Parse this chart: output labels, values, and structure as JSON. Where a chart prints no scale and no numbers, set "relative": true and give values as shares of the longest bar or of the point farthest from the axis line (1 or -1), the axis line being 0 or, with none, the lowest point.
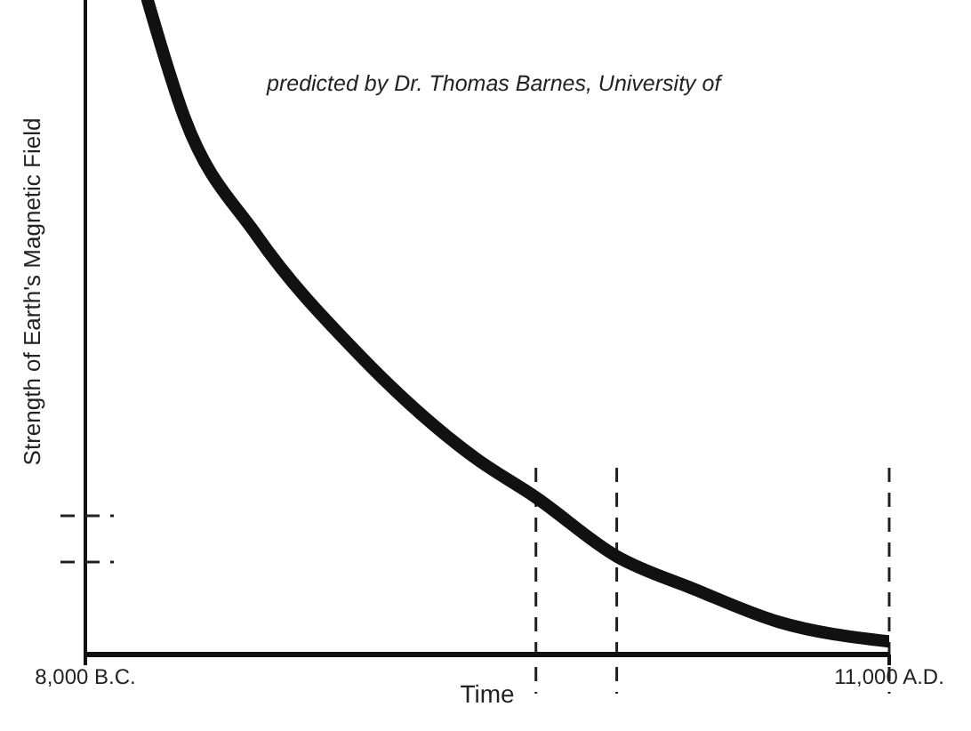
{
  "chart_data": {
    "type": "line",
    "relative": true,
    "xlabel": "Time",
    "ylabel": "Strength of Earth's Magnetic Field",
    "annotations": [
      "predicted by Dr. Thomas Barnes, University of"
    ],
    "x": [
      -6530,
      -5655,
      -3945,
      -1560,
      1220,
      2650,
      4560,
      6390,
      8380,
      11000
    ],
    "series": [
      {
        "color": "#111111",
        "values": [
          1.0,
          0.82,
          0.64,
          0.46,
          0.3,
          0.24,
          0.15,
          0.1,
          0.05,
          0.02
        ]
      }
    ],
    "xlim": [
      -8000,
      11000
    ],
    "xticks": [
      {
        "value": -8000,
        "label": "8,000 B.C."
      },
      {
        "value": 11000,
        "label": "11,000 A.D."
      }
    ],
    "ref_lines": [
      {
        "axis": "x",
        "value": 2650,
        "line_style": "dashed"
      },
      {
        "axis": "x",
        "value": 4560,
        "line_style": "dashed"
      },
      {
        "axis": "x",
        "value": 11000,
        "line_style": "dashed"
      }
    ],
    "grid": false,
    "legend": false,
    "marker": "none",
    "line_style": "solid"
  }
}
